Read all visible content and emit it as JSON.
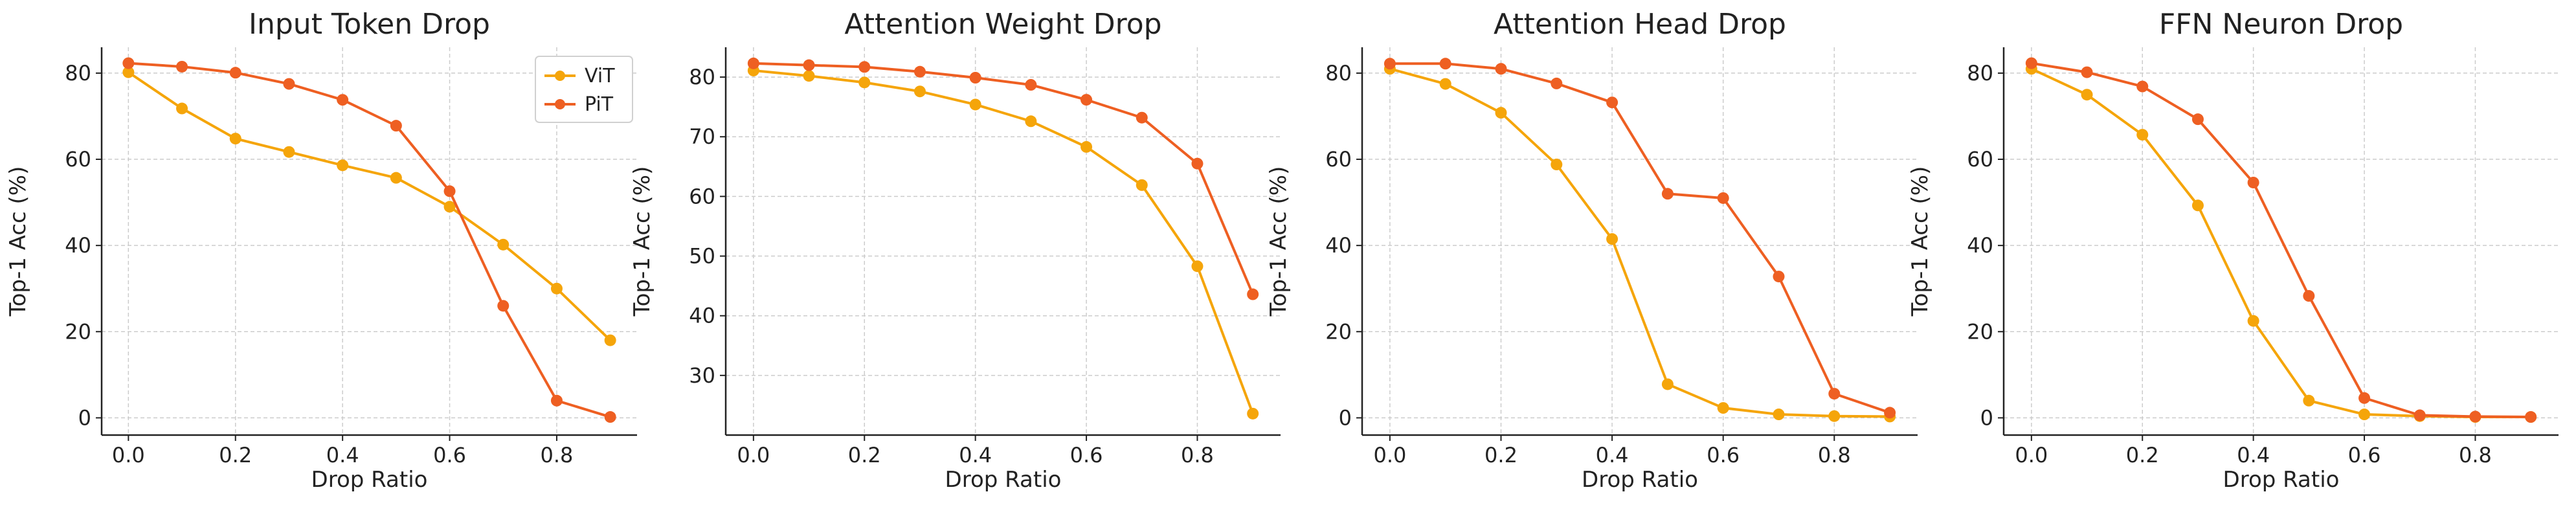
{
  "chart_data": [
    {
      "type": "line",
      "title": "Input Token Drop",
      "xlabel": "Drop Ratio",
      "ylabel": "Top-1 Acc (%)",
      "x": [
        0.0,
        0.1,
        0.2,
        0.3,
        0.4,
        0.5,
        0.6,
        0.7,
        0.8,
        0.9
      ],
      "xlim": [
        -0.05,
        0.95
      ],
      "ylim": [
        -4,
        86
      ],
      "xticks": [
        0.0,
        0.2,
        0.4,
        0.6,
        0.8
      ],
      "xtick_labels": [
        "0.0",
        "0.2",
        "0.4",
        "0.6",
        "0.8"
      ],
      "yticks": [
        0,
        20,
        40,
        60,
        80
      ],
      "ytick_labels": [
        "0",
        "20",
        "40",
        "60",
        "80"
      ],
      "grid": true,
      "legend": "top-right",
      "series": [
        {
          "name": "ViT",
          "color": "#f5a50a",
          "values": [
            80.2,
            71.8,
            64.8,
            61.7,
            58.6,
            55.7,
            49.0,
            40.2,
            30.0,
            18.0
          ]
        },
        {
          "name": "PiT",
          "color": "#ee5f22",
          "values": [
            82.3,
            81.5,
            80.1,
            77.5,
            73.8,
            67.8,
            52.6,
            26.0,
            4.0,
            0.2
          ]
        }
      ]
    },
    {
      "type": "line",
      "title": "Attention Weight Drop",
      "xlabel": "Drop Ratio",
      "ylabel": "Top-1 Acc (%)",
      "x": [
        0.0,
        0.1,
        0.2,
        0.3,
        0.4,
        0.5,
        0.6,
        0.7,
        0.8,
        0.9
      ],
      "xlim": [
        -0.05,
        0.95
      ],
      "ylim": [
        20,
        85
      ],
      "xticks": [
        0.0,
        0.2,
        0.4,
        0.6,
        0.8
      ],
      "xtick_labels": [
        "0.0",
        "0.2",
        "0.4",
        "0.6",
        "0.8"
      ],
      "yticks": [
        30,
        40,
        50,
        60,
        70,
        80
      ],
      "ytick_labels": [
        "30",
        "40",
        "50",
        "60",
        "70",
        "80"
      ],
      "grid": true,
      "series": [
        {
          "name": "ViT",
          "color": "#f5a50a",
          "values": [
            81.1,
            80.2,
            79.1,
            77.6,
            75.4,
            72.6,
            68.3,
            61.9,
            48.3,
            23.6
          ]
        },
        {
          "name": "PiT",
          "color": "#ee5f22",
          "values": [
            82.3,
            82.0,
            81.7,
            80.9,
            79.9,
            78.7,
            76.2,
            73.2,
            65.5,
            43.6
          ]
        }
      ]
    },
    {
      "type": "line",
      "title": "Attention Head Drop",
      "xlabel": "Drop Ratio",
      "ylabel": "Top-1 Acc (%)",
      "x": [
        0.0,
        0.1,
        0.2,
        0.3,
        0.4,
        0.5,
        0.6,
        0.7,
        0.8,
        0.9
      ],
      "xlim": [
        -0.05,
        0.95
      ],
      "ylim": [
        -4,
        86
      ],
      "xticks": [
        0.0,
        0.2,
        0.4,
        0.6,
        0.8
      ],
      "xtick_labels": [
        "0.0",
        "0.2",
        "0.4",
        "0.6",
        "0.8"
      ],
      "yticks": [
        0,
        20,
        40,
        60,
        80
      ],
      "ytick_labels": [
        "0",
        "20",
        "40",
        "60",
        "80"
      ],
      "grid": true,
      "series": [
        {
          "name": "ViT",
          "color": "#f5a50a",
          "values": [
            81.0,
            77.5,
            70.8,
            58.8,
            41.5,
            7.8,
            2.3,
            0.8,
            0.4,
            0.3
          ]
        },
        {
          "name": "PiT",
          "color": "#ee5f22",
          "values": [
            82.2,
            82.2,
            81.0,
            77.6,
            73.2,
            52.0,
            51.0,
            32.8,
            5.6,
            1.2
          ]
        }
      ]
    },
    {
      "type": "line",
      "title": "FFN Neuron Drop",
      "xlabel": "Drop Ratio",
      "ylabel": "Top-1 Acc (%)",
      "x": [
        0.0,
        0.1,
        0.2,
        0.3,
        0.4,
        0.5,
        0.6,
        0.7,
        0.8,
        0.9
      ],
      "xlim": [
        -0.05,
        0.95
      ],
      "ylim": [
        -4,
        86
      ],
      "xticks": [
        0.0,
        0.2,
        0.4,
        0.6,
        0.8
      ],
      "xtick_labels": [
        "0.0",
        "0.2",
        "0.4",
        "0.6",
        "0.8"
      ],
      "yticks": [
        0,
        20,
        40,
        60,
        80
      ],
      "ytick_labels": [
        "0",
        "20",
        "40",
        "60",
        "80"
      ],
      "grid": true,
      "series": [
        {
          "name": "ViT",
          "color": "#f5a50a",
          "values": [
            81.0,
            75.0,
            65.7,
            49.3,
            22.5,
            4.0,
            0.8,
            0.4,
            0.2,
            0.2
          ]
        },
        {
          "name": "PiT",
          "color": "#ee5f22",
          "values": [
            82.3,
            80.2,
            76.9,
            69.3,
            54.6,
            28.3,
            4.6,
            0.6,
            0.3,
            0.2
          ]
        }
      ]
    }
  ]
}
